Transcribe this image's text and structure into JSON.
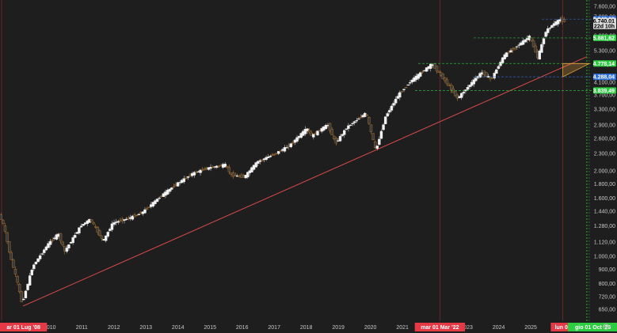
{
  "chart_data": {
    "type": "candlestick",
    "x_range": [
      "2008-06-01",
      "2026-11-01"
    ],
    "y_range": [
      600,
      7700
    ],
    "y_scale": "log",
    "x_tick_labels": [
      "2010",
      "2011",
      "2012",
      "2013",
      "2014",
      "2015",
      "2016",
      "2017",
      "2018",
      "2019",
      "2020",
      "2021",
      "2023",
      "2024",
      "2025"
    ],
    "y_tick_labels": [
      "7.600,00",
      "7.000,00",
      "6.000,00",
      "5.300,00",
      "4.100,00",
      "3.700,00",
      "3.300,00",
      "2.900,00",
      "2.600,00",
      "2.300,00",
      "2.000,00",
      "1.800,00",
      "1.600,00",
      "1.440,00",
      "1.280,00",
      "1.120,00",
      "1.000,00",
      "900,00",
      "800,00",
      "720,00",
      "650,00"
    ],
    "x_markers": [
      {
        "label": "ar 01 Lug '08",
        "date": "2008-07-01",
        "color": "#e53945"
      },
      {
        "label": "mar 01 Mar '22",
        "date": "2022-03-01",
        "color": "#e53945"
      },
      {
        "label": "lun 02",
        "date": "2026-01-02",
        "color": "#e53945"
      },
      {
        "label": "gio 01 Oct '26",
        "date": "2026-10-01",
        "color": "#2ecc40"
      }
    ],
    "price_tags": [
      {
        "label": "6.849,08",
        "value": 6849.08,
        "color": "#2f6fdb"
      },
      {
        "label": "6.740,01",
        "value": 6740.01,
        "color": "#d9d9d9"
      },
      {
        "label": "22d 10h",
        "value": 6480,
        "color": "#d9d9d9"
      },
      {
        "label": "5.881,62",
        "value": 5881.62,
        "color": "#2ecc40"
      },
      {
        "label": "4.778,14",
        "value": 4778.14,
        "color": "#2ecc40"
      },
      {
        "label": "4.288,04",
        "value": 4288.04,
        "color": "#2f6fdb"
      },
      {
        "label": "3.839,49",
        "value": 3839.49,
        "color": "#2ecc40"
      }
    ],
    "trendline": {
      "start": {
        "date": "2009-03-01",
        "value": 667
      },
      "end": {
        "date": "2026-10-01",
        "value": 5050
      },
      "color": "#d84a4a"
    },
    "triangle": {
      "points": [
        {
          "date": "2026-01-01",
          "value": 4778.14
        },
        {
          "date": "2026-11-01",
          "value": 4778.14
        },
        {
          "date": "2026-01-01",
          "value": 4288.04
        }
      ],
      "color": "#e6a23c"
    },
    "candles": []
  }
}
